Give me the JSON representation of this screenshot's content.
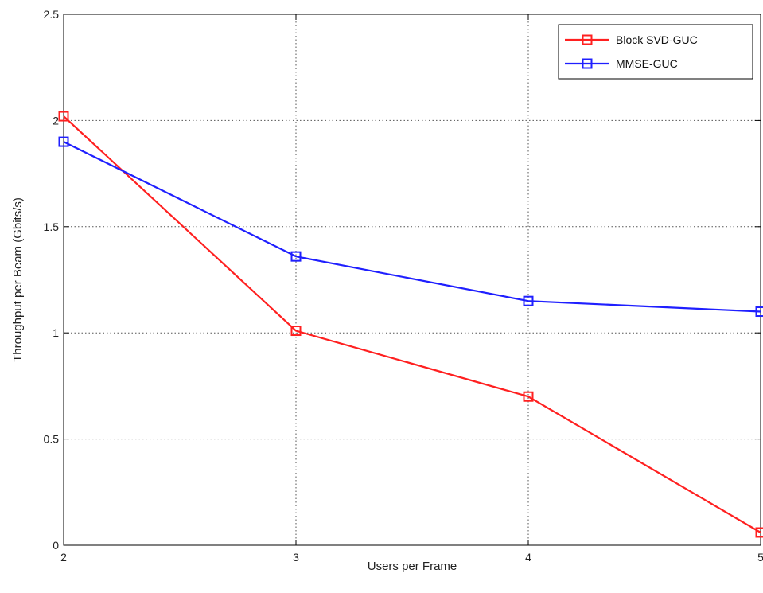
{
  "chart_data": {
    "type": "line",
    "title": "",
    "xlabel": "Users per Frame",
    "ylabel": "Throughput per Beam (Gbits/s)",
    "xlim": [
      2,
      5
    ],
    "ylim": [
      0,
      2.5
    ],
    "xticks": [
      2,
      3,
      4,
      5
    ],
    "yticks": [
      0,
      0.5,
      1,
      1.5,
      2,
      2.5
    ],
    "xtick_labels": [
      "2",
      "3",
      "4",
      "5"
    ],
    "ytick_labels": [
      "0",
      "0.5",
      "1",
      "1.5",
      "2",
      "2.5"
    ],
    "grid": true,
    "legend_position": "top-right",
    "x": [
      2,
      3,
      4,
      5
    ],
    "series": [
      {
        "name": "Block SVD-GUC",
        "color": "#ff2020",
        "marker": "square",
        "values": [
          2.02,
          1.01,
          0.7,
          0.06
        ]
      },
      {
        "name": "MMSE-GUC",
        "color": "#1f1fff",
        "marker": "square",
        "values": [
          1.9,
          1.36,
          1.15,
          1.1
        ]
      }
    ]
  }
}
